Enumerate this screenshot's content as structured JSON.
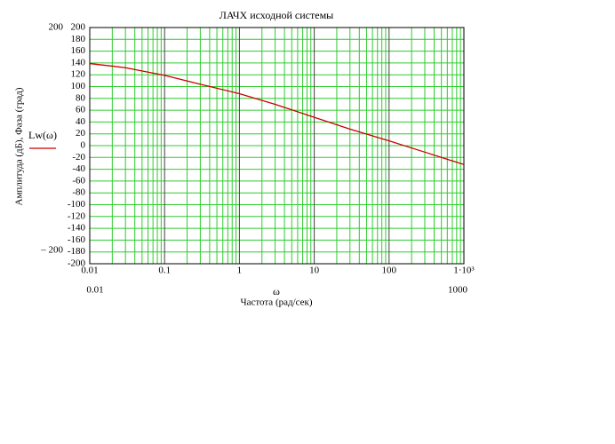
{
  "chart_data": {
    "type": "line",
    "title": "ЛАЧХ исходной системы",
    "xlabel": "Частота (рад/сек)",
    "xvar": "ω",
    "ylabel": "Амплитуда (дБ), Фаза (град)",
    "x": [
      0.01,
      0.03,
      0.1,
      0.3,
      1,
      3,
      10,
      30,
      100,
      300,
      1000
    ],
    "series": [
      {
        "name": "Lw(ω)",
        "color": "#cc0000",
        "values": [
          139,
          132,
          119,
          104,
          88,
          70,
          48,
          28,
          8,
          -11,
          -32
        ]
      }
    ],
    "xlim": [
      0.01,
      1000
    ],
    "xscale": "log",
    "xticks": [
      0.01,
      0.1,
      1,
      10,
      100,
      {
        "value": 1000,
        "label": "1·10³"
      }
    ],
    "ylim": [
      -200,
      200
    ],
    "ylim_labels": [
      "– 200",
      "200"
    ],
    "yticks": [
      200,
      180,
      160,
      140,
      120,
      100,
      80,
      60,
      40,
      20,
      0,
      -20,
      -40,
      -60,
      -80,
      -100,
      -120,
      -140,
      -160,
      -180,
      -200
    ],
    "grid": true,
    "grid_color": "#2ecc2e",
    "decade_color": "#404040"
  }
}
